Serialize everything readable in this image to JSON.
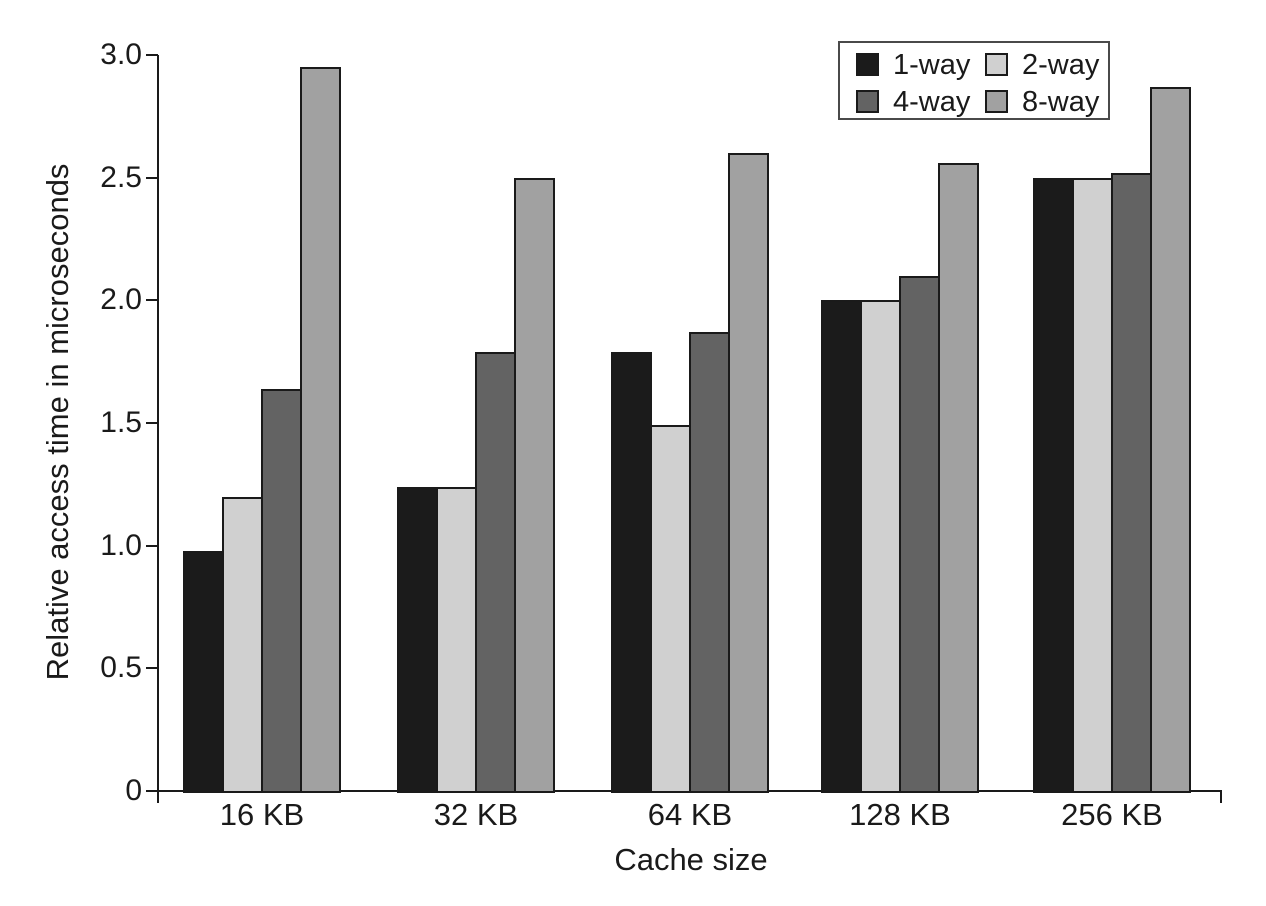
{
  "chart_data": {
    "type": "bar",
    "title": "",
    "xlabel": "Cache size",
    "ylabel": "Relative access time in microseconds",
    "categories": [
      "16 KB",
      "32 KB",
      "64 KB",
      "128 KB",
      "256 KB"
    ],
    "series": [
      {
        "name": "1-way",
        "color": "#1b1b1b",
        "values": [
          0.98,
          1.24,
          1.79,
          2.0,
          2.5
        ]
      },
      {
        "name": "2-way",
        "color": "#d0d0d0",
        "values": [
          1.2,
          1.24,
          1.49,
          2.0,
          2.5
        ]
      },
      {
        "name": "4-way",
        "color": "#636363",
        "values": [
          1.64,
          1.79,
          1.87,
          2.1,
          2.52
        ]
      },
      {
        "name": "8-way",
        "color": "#a1a1a1",
        "values": [
          2.95,
          2.5,
          2.6,
          2.56,
          2.87
        ]
      }
    ],
    "ylim": [
      0,
      3.0
    ],
    "yticks": [
      0,
      0.5,
      1.0,
      1.5,
      2.0,
      2.5,
      3.0
    ],
    "ytick_labels": [
      "0",
      "0.5",
      "1.0",
      "1.5",
      "2.0",
      "2.5",
      "3.0"
    ],
    "grid": false,
    "legend_position": "top-right",
    "axis_color": "#1a1a1a"
  }
}
